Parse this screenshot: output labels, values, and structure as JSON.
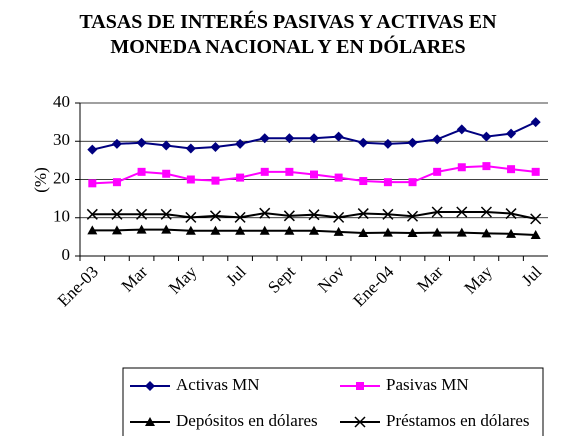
{
  "chart_data": {
    "type": "line",
    "title": "TASAS DE INTERÉS PASIVAS Y ACTIVAS EN MONEDA NACIONAL Y EN DÓLARES",
    "y_label": "(%)",
    "categories": [
      "Ene-03",
      null,
      "Mar",
      null,
      "May",
      null,
      "Jul",
      null,
      "Sept",
      null,
      "Nov",
      null,
      "Ene-04",
      null,
      "Mar",
      null,
      "May",
      null,
      "Jul"
    ],
    "series": [
      {
        "name": "Activas MN",
        "color": "#000080",
        "marker": "diamond",
        "values": [
          27.8,
          29.3,
          29.6,
          28.9,
          28.1,
          28.5,
          29.3,
          30.8,
          30.8,
          30.8,
          31.2,
          29.6,
          29.3,
          29.6,
          30.5,
          33.1,
          31.2,
          32.0,
          35.0
        ]
      },
      {
        "name": "Pasivas MN",
        "color": "#ff00ff",
        "marker": "square",
        "values": [
          19.0,
          19.3,
          22.0,
          21.5,
          20.0,
          19.7,
          20.5,
          22.0,
          22.0,
          21.3,
          20.5,
          19.6,
          19.3,
          19.3,
          22.0,
          23.2,
          23.5,
          22.7,
          22.0
        ]
      },
      {
        "name": "Depósitos en dólares",
        "color": "#000000",
        "marker": "triangle",
        "values": [
          6.7,
          6.7,
          6.9,
          6.9,
          6.6,
          6.6,
          6.6,
          6.6,
          6.6,
          6.6,
          6.3,
          6.0,
          6.1,
          6.0,
          6.1,
          6.1,
          5.9,
          5.8,
          5.5
        ]
      },
      {
        "name": "Préstamos en dólares",
        "color": "#000000",
        "marker": "x",
        "values": [
          10.9,
          10.9,
          10.9,
          10.9,
          10.1,
          10.5,
          10.1,
          11.2,
          10.5,
          10.8,
          10.1,
          11.1,
          10.9,
          10.4,
          11.5,
          11.5,
          11.5,
          11.1,
          9.7
        ]
      }
    ],
    "ylim": [
      0,
      40
    ],
    "yticks": [
      0,
      10,
      20,
      30,
      40
    ],
    "grid": true,
    "legend": "bottom"
  }
}
